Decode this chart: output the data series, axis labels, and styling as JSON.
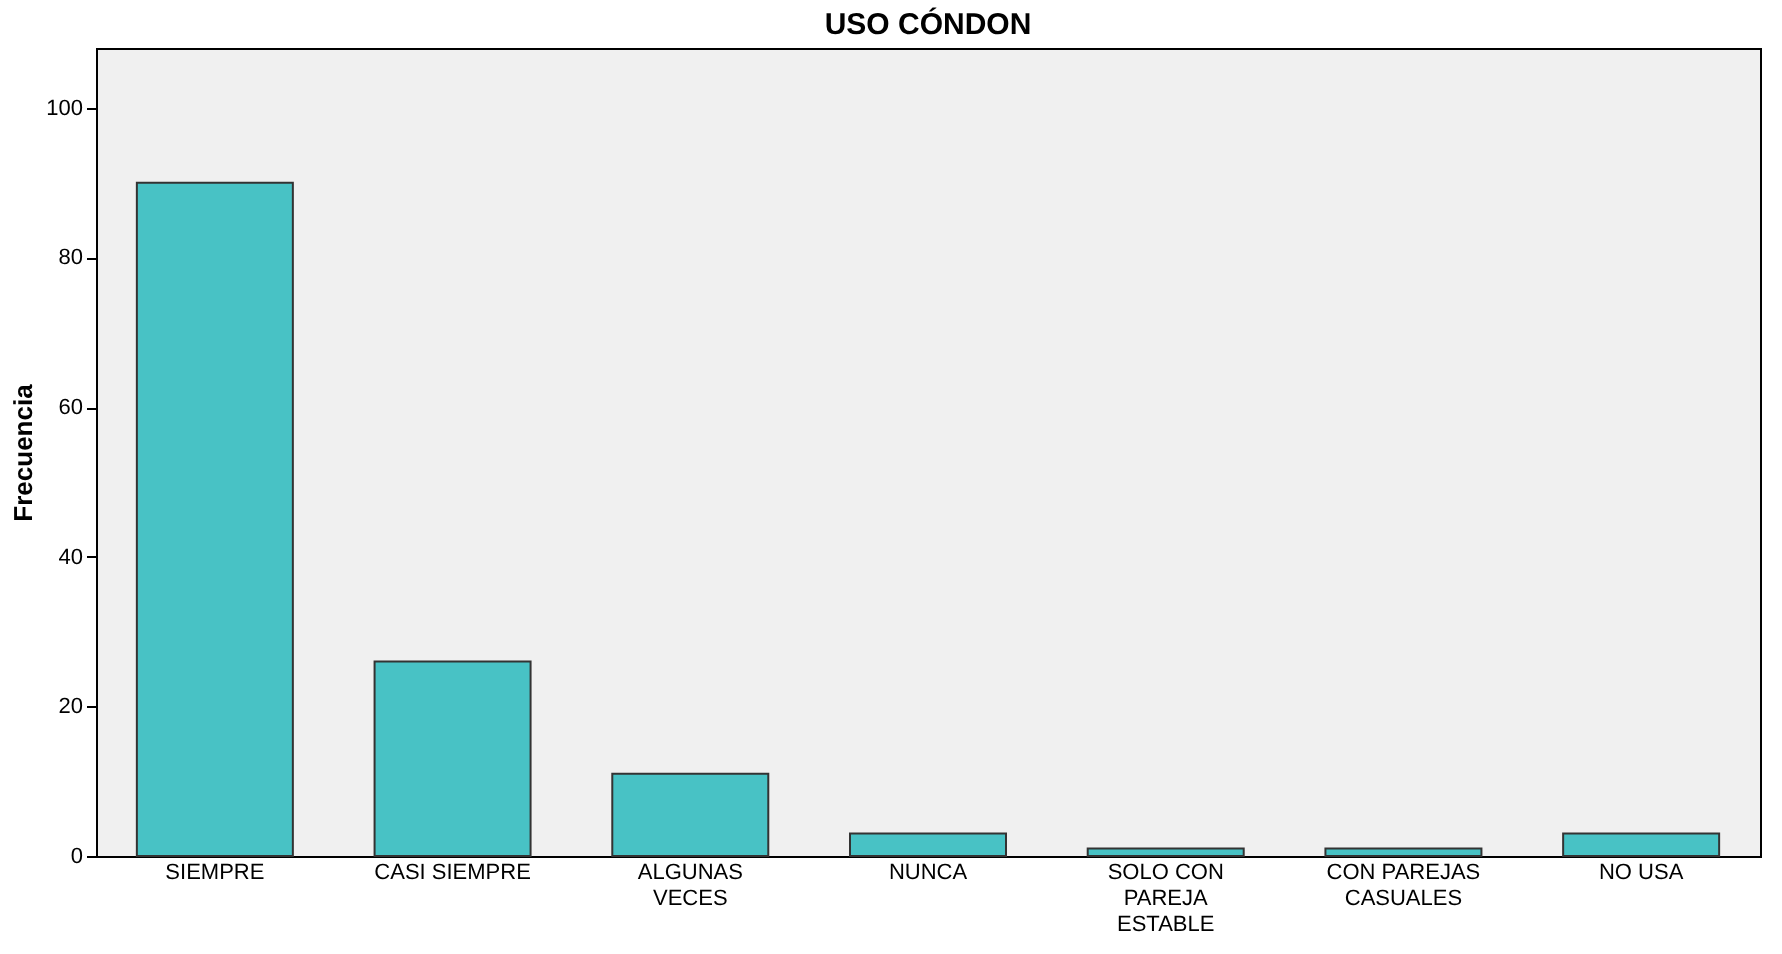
{
  "chart_data": {
    "type": "bar",
    "title": "USO CÓNDON",
    "ylabel": "Frecuencia",
    "categories": [
      "SIEMPRE",
      "CASI SIEMPRE",
      "ALGUNAS VECES",
      "NUNCA",
      "SOLO CON PAREJA ESTABLE",
      "CON PAREJAS CASUALES",
      "NO USA"
    ],
    "values": [
      90,
      26,
      11,
      3,
      1,
      1,
      3
    ],
    "color": "#48c2c5",
    "ylim": [
      0,
      108
    ],
    "yticks": [
      0,
      20,
      40,
      60,
      80,
      100
    ],
    "grid": false
  }
}
